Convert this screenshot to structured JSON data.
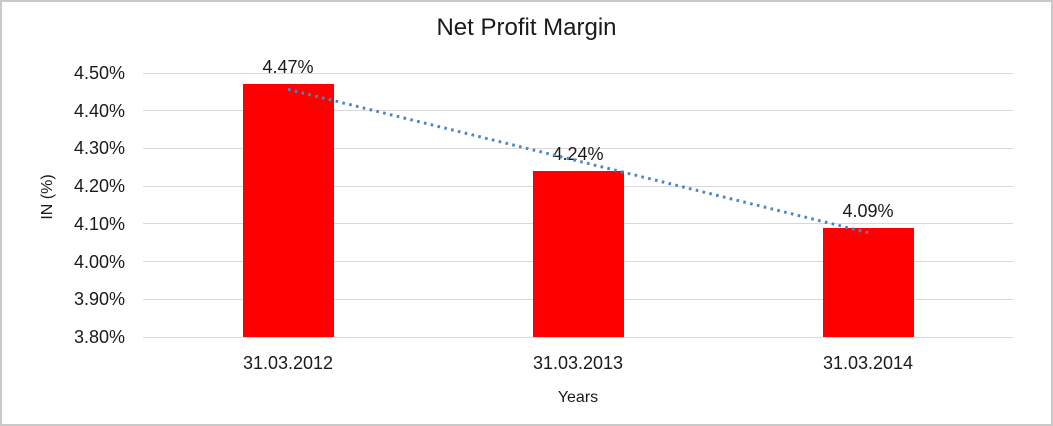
{
  "chart_data": {
    "type": "bar",
    "title": "Net Profit Margin",
    "xlabel": "Years",
    "ylabel": "IN (%)",
    "categories": [
      "31.03.2012",
      "31.03.2013",
      "31.03.2014"
    ],
    "values": [
      4.47,
      4.24,
      4.09
    ],
    "data_labels": [
      "4.47%",
      "4.24%",
      "4.09%"
    ],
    "ylim": [
      3.8,
      4.5
    ],
    "ytick_step": 0.1,
    "ytick_labels": [
      "4.50%",
      "4.40%",
      "4.30%",
      "4.20%",
      "4.10%",
      "4.00%",
      "3.90%",
      "3.80%"
    ],
    "grid": true,
    "legend": "none",
    "trendline": {
      "type": "linear",
      "style": "dotted"
    },
    "colors": {
      "bar": "#FF0000",
      "trendline": "#4C84C4",
      "gridline": "#D9D9D9",
      "text": "#1A1A1A",
      "frame_border": "#C9C9C9",
      "background": "#FFFFFF"
    }
  }
}
